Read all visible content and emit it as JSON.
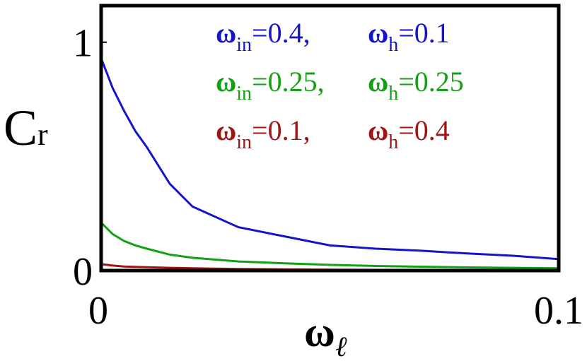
{
  "chart_data": {
    "type": "line",
    "xlabel": [
      "ω",
      "ℓ"
    ],
    "ylabel": [
      "C",
      "r"
    ],
    "x": [
      0,
      0.0025,
      0.005,
      0.0075,
      0.01,
      0.015,
      0.02,
      0.03,
      0.04,
      0.05,
      0.06,
      0.07,
      0.08,
      0.09,
      0.1
    ],
    "series": [
      {
        "name": [
          "ω",
          "in",
          "=0.4,",
          "ω",
          "h",
          "=0.1"
        ],
        "color": "#1414c8",
        "values": [
          0.93,
          0.8,
          0.7,
          0.61,
          0.54,
          0.38,
          0.28,
          0.19,
          0.15,
          0.11,
          0.096,
          0.087,
          0.075,
          0.065,
          0.05
        ]
      },
      {
        "name": [
          "ω",
          "in",
          "=0.25,",
          "ω",
          "h",
          "=0.25"
        ],
        "color": "#14a014",
        "values": [
          0.21,
          0.16,
          0.13,
          0.11,
          0.096,
          0.07,
          0.056,
          0.04,
          0.032,
          0.025,
          0.02,
          0.017,
          0.014,
          0.012,
          0.01
        ]
      },
      {
        "name": [
          "ω",
          "in",
          "=0.1,",
          "ω",
          "h",
          "=0.4"
        ],
        "color": "#a01414",
        "values": [
          0.028,
          0.022,
          0.018,
          0.016,
          0.015,
          0.012,
          0.01,
          0.007,
          0.005,
          0.004,
          0.003,
          0.003,
          0.003,
          0.003,
          0.003
        ]
      }
    ],
    "xlim": [
      0,
      0.1
    ],
    "ylim": [
      0,
      1.16
    ],
    "xticks": [
      0,
      0.1
    ],
    "yticks": [
      0,
      1
    ]
  }
}
